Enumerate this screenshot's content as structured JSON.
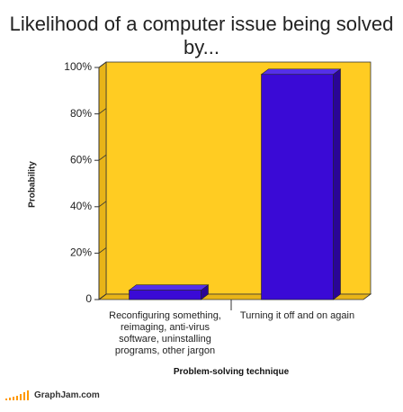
{
  "chart_data": {
    "type": "bar",
    "title": "Likelihood of a computer issue being solved by...",
    "categories": [
      "Reconfiguring something, reimaging, anti-virus software, uninstalling programs, other jargon",
      "Turning it off and on again"
    ],
    "values": [
      4,
      97
    ],
    "color": "#3a0ad6",
    "background": "#ffcc22",
    "ylim": [
      0,
      100
    ],
    "yticks": [
      0,
      {
        "value": 20,
        "label": "20%"
      },
      {
        "value": 40,
        "label": "40%"
      },
      {
        "value": 60,
        "label": "60%"
      },
      {
        "value": 80,
        "label": "80%"
      },
      {
        "value": 100,
        "label": "100%"
      }
    ],
    "y_label": "Probability",
    "x_label": "Problem-solving technique",
    "source": "GraphJam.com"
  }
}
